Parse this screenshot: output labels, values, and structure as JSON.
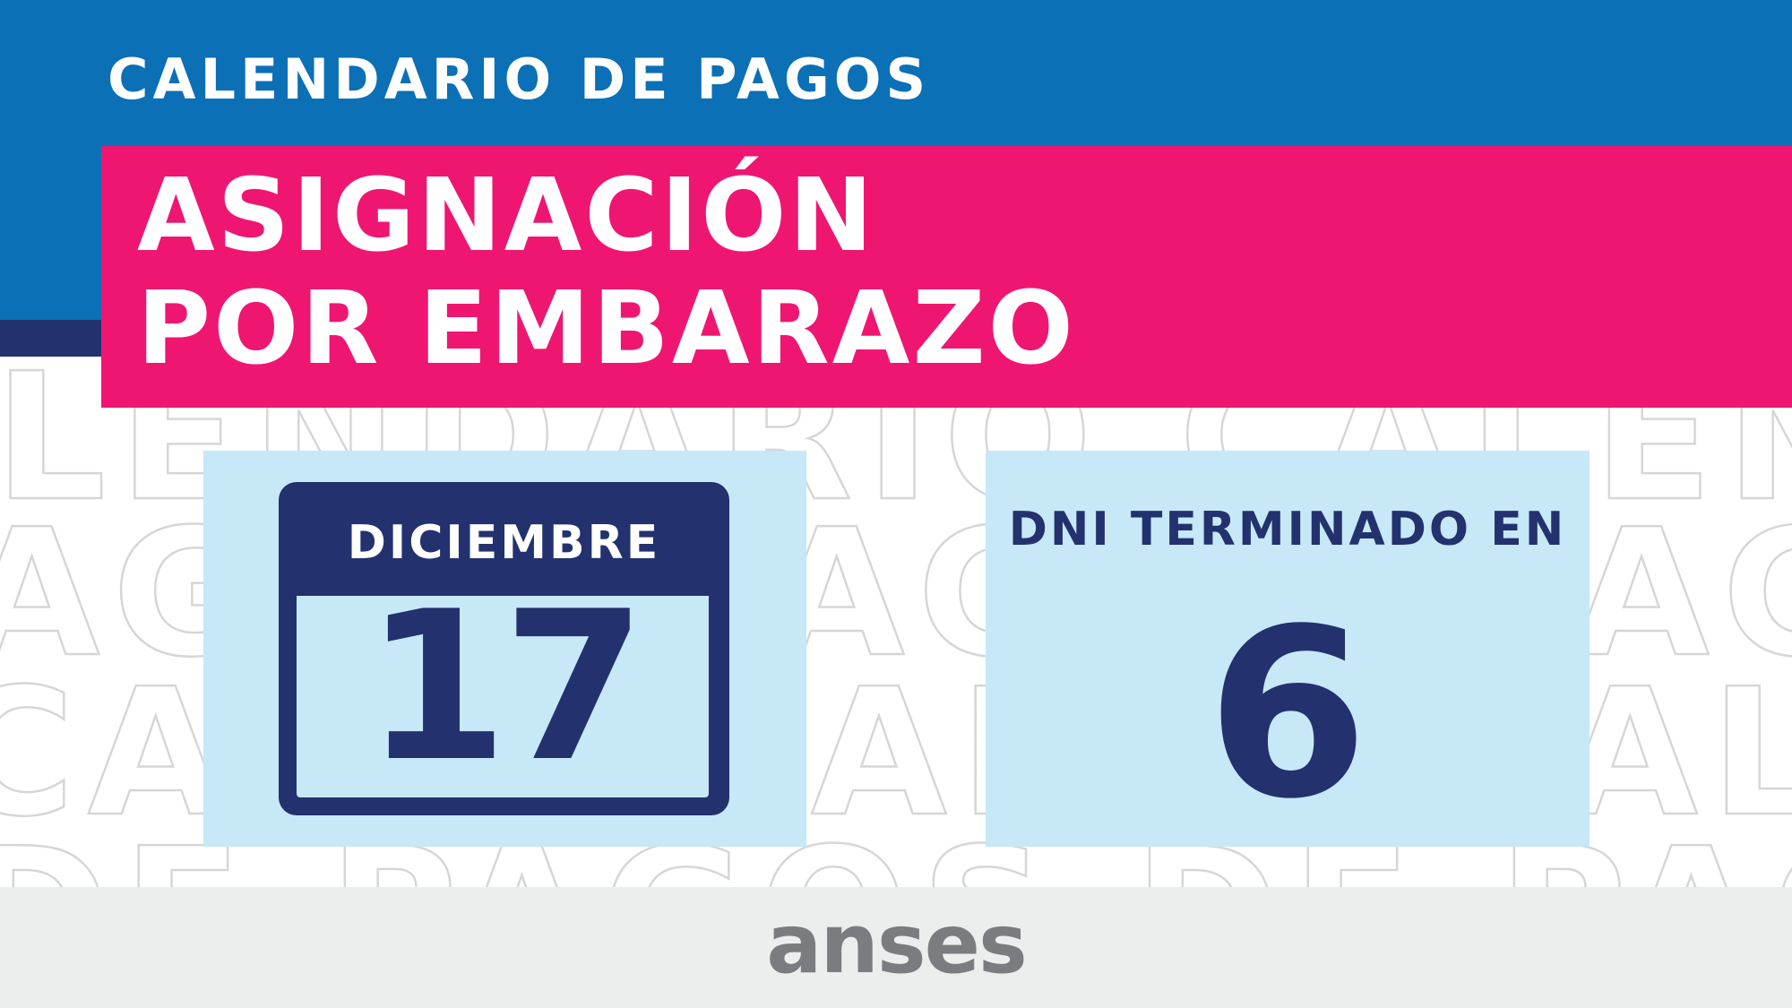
{
  "header": {
    "title": "CALENDARIO DE PAGOS"
  },
  "banner": {
    "line1": "ASIGNACIÓN",
    "line2": "POR EMBARAZO"
  },
  "background_pattern": {
    "rows": [
      "CALENDARIO CALENDARIO",
      "PAGOS PAGOS PAGOS",
      "CALENDARIO CALENDARIO",
      "DE PAGOS DE PAGOS"
    ]
  },
  "calendar": {
    "month": "DICIEMBRE",
    "day": "17",
    "icon": "calendar-icon"
  },
  "dni": {
    "label": "DNI TERMINADO EN",
    "digit": "6"
  },
  "footer": {
    "logo": "anses"
  },
  "colors": {
    "top_blue": "#0b70b5",
    "navy": "#23326e",
    "pink": "#ef1672",
    "light_blue": "#c6e8f7",
    "footer_gray": "#eceeed",
    "logo_gray": "#7a7d7f"
  }
}
